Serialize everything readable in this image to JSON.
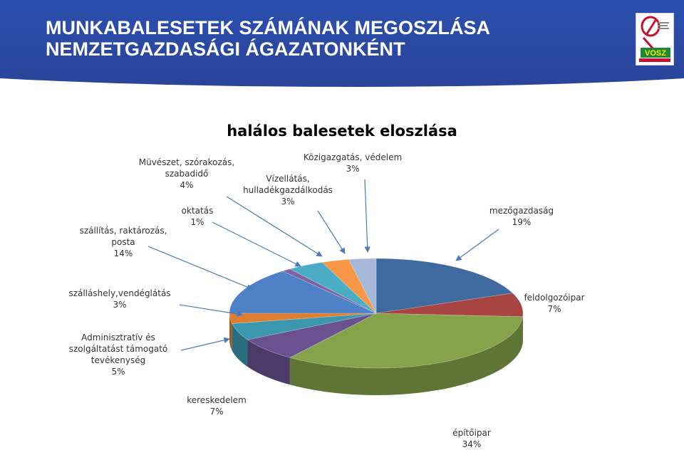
{
  "header": {
    "title_line1": "MUNKABALESETEK SZÁMÁNAK MEGOSZLÁSA",
    "title_line2": "NEMZETGAZDASÁGI ÁGAZATONKÉNT",
    "bg_color": "#2a4aa3",
    "logo_text": "VOSZ"
  },
  "chart_data": {
    "type": "pie",
    "style": "3d",
    "title": "halálos balesetek eloszlása",
    "slices": [
      {
        "name": "mezőgazdaság",
        "value": 19,
        "label": "19%",
        "color": "#3e6aa0"
      },
      {
        "name": "feldolgozóipar",
        "value": 7,
        "label": "7%",
        "color": "#a84442"
      },
      {
        "name": "építőipar",
        "value": 34,
        "label": "34%",
        "color": "#84a34a"
      },
      {
        "name": "kereskedelem",
        "value": 7,
        "label": "7%",
        "color": "#6a5291"
      },
      {
        "name": "Adminisztratív és szolgáltatást támogató tevékenység",
        "value": 5,
        "label": "5%",
        "color": "#3b97ad"
      },
      {
        "name": "szálláshely,vendéglátás",
        "value": 3,
        "label": "3%",
        "color": "#de7c30"
      },
      {
        "name": "szállítás, raktározás, posta",
        "value": 14,
        "label": "14%",
        "color": "#4f81c7"
      },
      {
        "name": "oktatás",
        "value": 1,
        "label": "1%",
        "color": "#8064a2"
      },
      {
        "name": "Müvészet, szórakozás, szabadidő",
        "value": 4,
        "label": "4%",
        "color": "#4bacc6"
      },
      {
        "name": "Vízellátás, hulladékgazdálkodás",
        "value": 3,
        "label": "3%",
        "color": "#f79646"
      },
      {
        "name": "Közigazgatás, védelem",
        "value": 3,
        "label": "3%",
        "color": "#a5b8d8"
      }
    ]
  },
  "labels": {
    "mezogazdasag": {
      "l1": "mezőgazdaság",
      "l2": "19%"
    },
    "feldolgozoipar": {
      "l1": "feldolgozóipar",
      "l2": "7%"
    },
    "epitoipar": {
      "l1": "építőipar",
      "l2": "34%"
    },
    "kereskedelem": {
      "l1": "kereskedelem",
      "l2": "7%"
    },
    "adminisztrativ": {
      "l1": "Adminisztratív és",
      "l2": "szolgáltatást támogató",
      "l3": "tevékenység",
      "l4": "5%"
    },
    "szallashely": {
      "l1": "szálláshely,vendéglátás",
      "l2": "3%"
    },
    "szallitas": {
      "l1": "szállítás, raktározás,",
      "l2": "posta",
      "l3": "14%"
    },
    "oktatas": {
      "l1": "oktatás",
      "l2": "1%"
    },
    "muveszet": {
      "l1": "Müvészet, szórakozás,",
      "l2": "szabadidő",
      "l3": "4%"
    },
    "vizellatas": {
      "l1": "Vízellátás,",
      "l2": "hulladékgazdálkodás",
      "l3": "3%"
    },
    "kozigazgatas": {
      "l1": "Közigazgatás, védelem",
      "l2": "3%"
    }
  }
}
